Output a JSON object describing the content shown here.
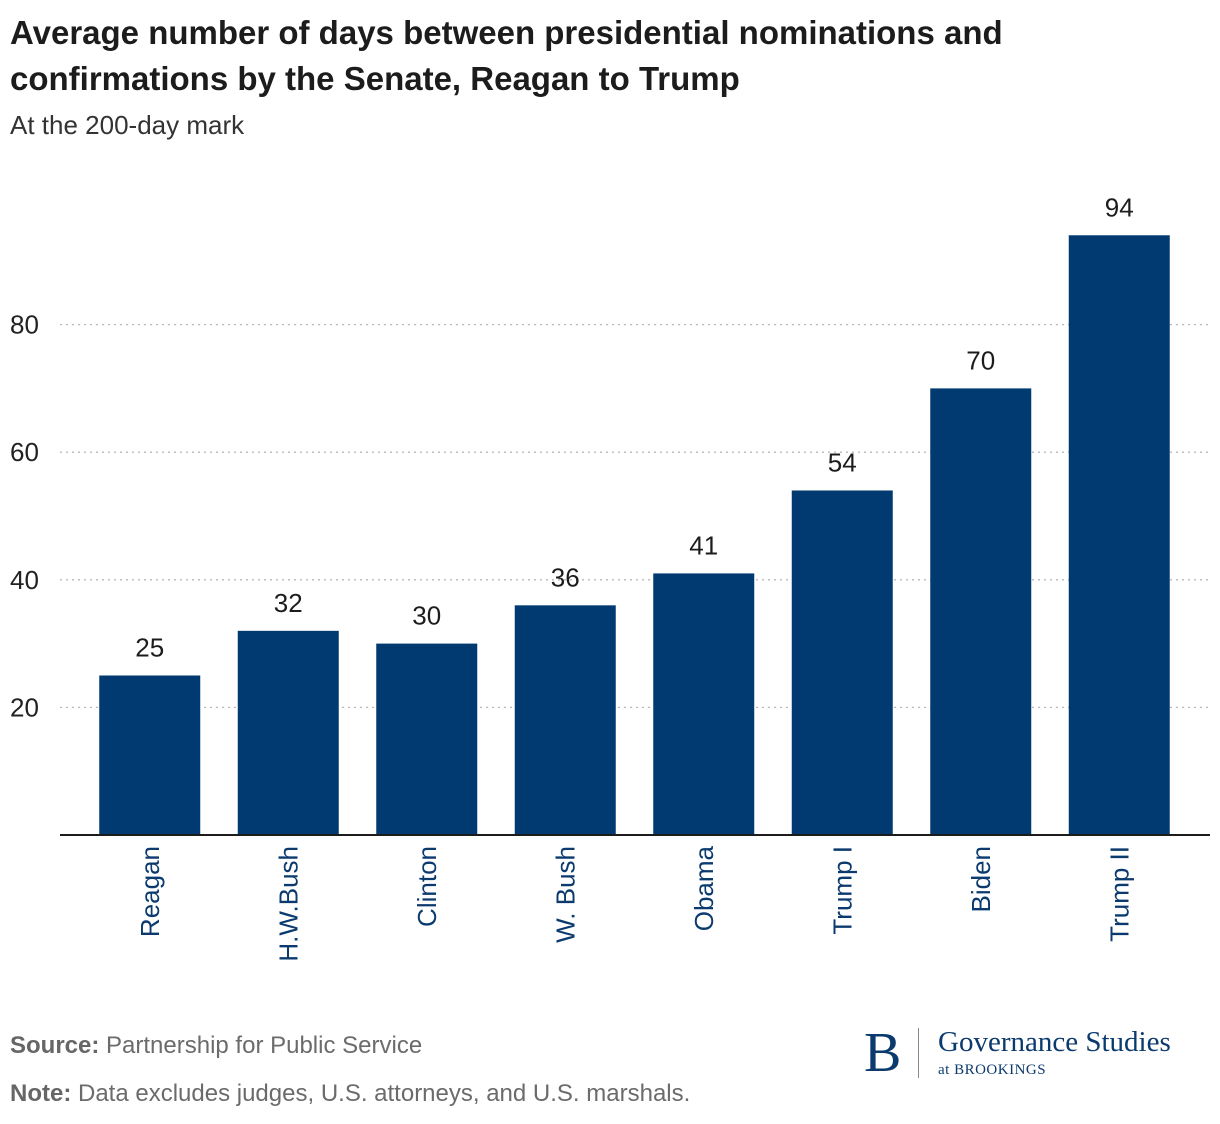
{
  "header": {
    "title": "Average number of days between presidential nominations and confirmations by the Senate, Reagan to Trump",
    "subtitle": "At the 200-day mark"
  },
  "chart_data": {
    "type": "bar",
    "title": "Average number of days between presidential nominations and confirmations by the Senate, Reagan to Trump",
    "subtitle": "At the 200-day mark",
    "categories": [
      "Reagan",
      "H.W.Bush",
      "Clinton",
      "W. Bush",
      "Obama",
      "Trump I",
      "Biden",
      "Trump II"
    ],
    "values": [
      25,
      32,
      30,
      36,
      41,
      54,
      70,
      94
    ],
    "ylim": [
      0,
      100
    ],
    "yticks": [
      20,
      40,
      60,
      80
    ],
    "xlabel": "",
    "ylabel": "",
    "grid": true,
    "bar_color": "#003a70"
  },
  "footer": {
    "source_label": "Source:",
    "source_text": "Partnership for Public Service",
    "note_label": "Note:",
    "note_text": "Data excludes judges, U.S. attorneys, and U.S. marshals."
  },
  "logo": {
    "mark": "B",
    "line1": "Governance Studies",
    "line2": "at BROOKINGS"
  },
  "colors": {
    "bar": "#003a70",
    "category_label": "#0b3a6e",
    "text": "#1c1c1c"
  }
}
